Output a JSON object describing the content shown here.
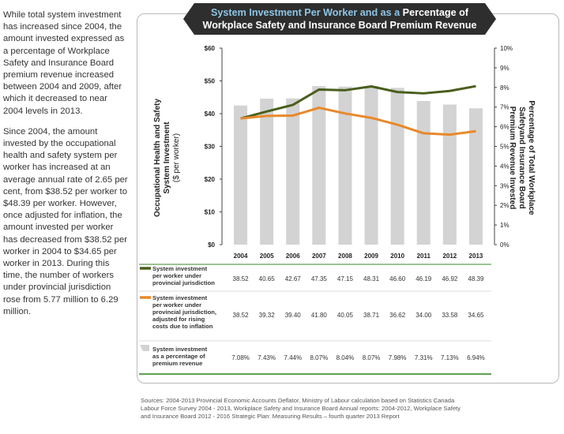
{
  "intro_text": {
    "paragraphs": [
      "While total system investment has increased since 2004, the amount invested expressed as a percentage of Workplace Safety and Insurance Board premium revenue increased between 2004 and 2009, after which it decreased to near 2004 levels in 2013.",
      "Since 2004, the amount invested by the occupational health and safety system per worker has increased at an average annual rate of 2.65 per cent, from $38.52 per worker to $48.39 per worker. However, once adjusted for inflation, the amount invested per worker has decreased from $38.52 per worker in 2004 to $34.65 per worker in 2013. During this time, the number of workers under provincial jurisdiction rose from 5.77 million to 6.29 million."
    ]
  },
  "banner": {
    "part1": "System Investment Per Worker and as a",
    "part2": "Percentage of",
    "part3": "Workplace Safety and Insurance Board Premium Revenue"
  },
  "colors": {
    "line_nominal": "#4a5e1c",
    "line_adjusted": "#e8892b",
    "bars": "#d3d3d3",
    "table_rule": "#5ea152",
    "banner": "#2e2e2e",
    "banner_highlight": "#8ec6e6"
  },
  "chart_data": {
    "type": "bar+line",
    "categories": [
      "2004",
      "2005",
      "2006",
      "2007",
      "2008",
      "2009",
      "2010",
      "2011",
      "2012",
      "2013"
    ],
    "left_axis": {
      "label_line1": "Occupational Health and Safety",
      "label_line2": "System Investment",
      "label_line3": "($ per worker)",
      "ticks": [
        "$0",
        "$10",
        "$20",
        "$30",
        "$40",
        "$50",
        "$60"
      ],
      "ylim": [
        0,
        60
      ]
    },
    "right_axis": {
      "label_line1": "Percentage of Total Workplace",
      "label_line2": "Safetyand Insurance Board",
      "label_line3": "Premium Revenue Invested",
      "ticks": [
        "0%",
        "1%",
        "2%",
        "3%",
        "4%",
        "5%",
        "6%",
        "7%",
        "8%",
        "9%",
        "10%"
      ],
      "ylim": [
        0,
        10
      ]
    },
    "series": [
      {
        "name_line1": "System investment",
        "name_line2": "per worker under",
        "name_line3": "provincial jurisdiction",
        "type": "line",
        "axis": "left",
        "values": [
          38.52,
          40.65,
          42.67,
          47.35,
          47.15,
          48.31,
          46.6,
          46.19,
          46.92,
          48.39
        ],
        "table_values": [
          "38.52",
          "40.65",
          "42.67",
          "47.35",
          "47.15",
          "48.31",
          "46.60",
          "46.19",
          "46.92",
          "48.39"
        ]
      },
      {
        "name_line1": "System investment",
        "name_line2": "per worker under",
        "name_line3": "provincial jurisdiction,",
        "name_line4": "adjusted for rising",
        "name_line5": "costs due to inflation",
        "type": "line",
        "axis": "left",
        "values": [
          38.52,
          39.32,
          39.4,
          41.8,
          40.05,
          38.71,
          36.62,
          34.0,
          33.58,
          34.65
        ],
        "table_values": [
          "38.52",
          "39.32",
          "39.40",
          "41.80",
          "40.05",
          "38.71",
          "36.62",
          "34.00",
          "33.58",
          "34.65"
        ]
      },
      {
        "name_line1": "System investment",
        "name_line2": "as a percentage of",
        "name_line3": "premium revenue",
        "type": "bar",
        "axis": "right",
        "values": [
          7.08,
          7.43,
          7.44,
          8.07,
          8.04,
          8.07,
          7.98,
          7.31,
          7.13,
          6.94
        ],
        "table_values": [
          "7.08%",
          "7.43%",
          "7.44%",
          "8.07%",
          "8.04%",
          "8.07%",
          "7.98%",
          "7.31%",
          "7.13%",
          "6.94%"
        ]
      }
    ]
  },
  "source": {
    "line1": "Sources: 2004-2013 Provincial Economic Accounts Deflator, Ministry of Labour calculation based on Statistics Canada",
    "line2": "Labour Force Survey 2004 - 2013, Workplace Safety and Insurance Board Annual reports: 2004-2012, Workplace Safety",
    "line3": "and Insurance Board 2012 - 2016 Strategic Plan: Measuring Results – fourth quarter 2013 Report"
  }
}
